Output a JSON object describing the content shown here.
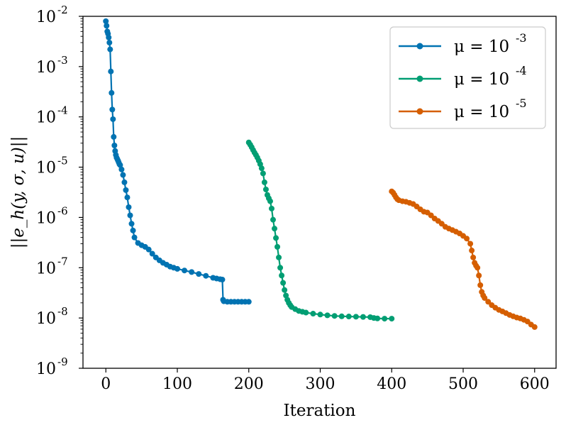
{
  "chart_data": {
    "type": "line",
    "title": "",
    "xlabel": "Iteration",
    "ylabel": "||e_h(y, σ, u)||",
    "yscale": "log",
    "xlim": [
      -32,
      630
    ],
    "ylim_exponents": [
      -9,
      -2
    ],
    "x_ticks": [
      0,
      100,
      200,
      300,
      400,
      500,
      600
    ],
    "x_tick_labels": [
      "0",
      "100",
      "200",
      "300",
      "400",
      "500",
      "600"
    ],
    "y_tick_exponents": [
      -9,
      -8,
      -7,
      -6,
      -5,
      -4,
      -3,
      -2
    ],
    "y_tick_labels": [
      "-9",
      "-8",
      "-7",
      "-6",
      "-5",
      "-4",
      "-3",
      "-2"
    ],
    "y_tick_base": "10",
    "legend_position": "upper right",
    "legend_symbol": "μ = 10",
    "series": [
      {
        "name": "μ = 10^-3",
        "exponent_label": "-3",
        "color": "#0173b2",
        "x": [
          0,
          1,
          2,
          3,
          4,
          5,
          6,
          7,
          8,
          9,
          10,
          11,
          12,
          13,
          14,
          15,
          16,
          17,
          18,
          19,
          20,
          22,
          24,
          26,
          28,
          30,
          32,
          34,
          36,
          38,
          40,
          45,
          50,
          55,
          60,
          65,
          70,
          75,
          80,
          85,
          90,
          95,
          100,
          110,
          120,
          130,
          140,
          150,
          155,
          160,
          163,
          164,
          165,
          170,
          175,
          180,
          185,
          190,
          195,
          200
        ],
        "y": [
          0.008,
          0.0065,
          0.005,
          0.0045,
          0.0038,
          0.003,
          0.0022,
          0.0008,
          0.0003,
          0.00014,
          9e-05,
          4e-05,
          2.7e-05,
          2.1e-05,
          1.75e-05,
          1.55e-05,
          1.45e-05,
          1.35e-05,
          1.25e-05,
          1.15e-05,
          1.1e-05,
          9e-06,
          7e-06,
          5e-06,
          3.5e-06,
          2.5e-06,
          1.6e-06,
          1.1e-06,
          7.5e-07,
          5.5e-07,
          4e-07,
          3.1e-07,
          2.8e-07,
          2.6e-07,
          2.3e-07,
          1.9e-07,
          1.6e-07,
          1.4e-07,
          1.25e-07,
          1.15e-07,
          1.05e-07,
          1e-07,
          9.5e-08,
          8.8e-08,
          8.2e-08,
          7.5e-08,
          6.9e-08,
          6.3e-08,
          6.1e-08,
          5.9e-08,
          5.8e-08,
          2.3e-08,
          2.15e-08,
          2.1e-08,
          2.1e-08,
          2.1e-08,
          2.1e-08,
          2.1e-08,
          2.1e-08,
          2.1e-08
        ]
      },
      {
        "name": "μ = 10^-4",
        "exponent_label": "-4",
        "color": "#029e73",
        "x": [
          200,
          202,
          204,
          206,
          208,
          210,
          212,
          214,
          216,
          218,
          220,
          222,
          224,
          226,
          228,
          230,
          232,
          234,
          236,
          238,
          240,
          242,
          244,
          246,
          248,
          250,
          252,
          254,
          256,
          258,
          260,
          265,
          270,
          275,
          280,
          290,
          300,
          310,
          320,
          330,
          340,
          350,
          360,
          370,
          375,
          380,
          390,
          400
        ],
        "y": [
          3.1e-05,
          2.8e-05,
          2.5e-05,
          2.2e-05,
          1.95e-05,
          1.75e-05,
          1.55e-05,
          1.35e-05,
          1.15e-05,
          9.5e-06,
          7.5e-06,
          5e-06,
          3.6e-06,
          2.8e-06,
          2.4e-06,
          2.1e-06,
          1.5e-06,
          9e-07,
          6e-07,
          3.9e-07,
          2.6e-07,
          1.6e-07,
          1e-07,
          7e-08,
          5e-08,
          3.6e-08,
          2.8e-08,
          2.3e-08,
          2e-08,
          1.8e-08,
          1.65e-08,
          1.5e-08,
          1.38e-08,
          1.33e-08,
          1.28e-08,
          1.22e-08,
          1.17e-08,
          1.13e-08,
          1.1e-08,
          1.08e-08,
          1.07e-08,
          1.06e-08,
          1.05e-08,
          1.04e-08,
          1e-08,
          9.8e-09,
          9.7e-09,
          9.7e-09
        ]
      },
      {
        "name": "μ = 10^-5",
        "exponent_label": "-5",
        "color": "#d55e00",
        "x": [
          400,
          402,
          404,
          406,
          408,
          410,
          415,
          420,
          425,
          430,
          435,
          440,
          445,
          450,
          455,
          460,
          465,
          470,
          475,
          480,
          485,
          490,
          495,
          500,
          505,
          510,
          512,
          514,
          516,
          518,
          520,
          522,
          524,
          526,
          528,
          530,
          535,
          540,
          545,
          550,
          555,
          560,
          565,
          570,
          575,
          580,
          585,
          590,
          595,
          600
        ],
        "y": [
          3.3e-06,
          3.1e-06,
          2.8e-06,
          2.5e-06,
          2.3e-06,
          2.2e-06,
          2.1e-06,
          2.05e-06,
          1.95e-06,
          1.85e-06,
          1.65e-06,
          1.45e-06,
          1.3e-06,
          1.25e-06,
          1.1e-06,
          9.5e-07,
          8.5e-07,
          7.5e-07,
          6.5e-07,
          6e-07,
          5.6e-07,
          5.2e-07,
          4.8e-07,
          4.3e-07,
          3.8e-07,
          3e-07,
          2.2e-07,
          1.6e-07,
          1.25e-07,
          1.1e-07,
          1e-07,
          7e-08,
          4.5e-08,
          3.3e-08,
          2.8e-08,
          2.5e-08,
          2.1e-08,
          1.8e-08,
          1.6e-08,
          1.45e-08,
          1.35e-08,
          1.25e-08,
          1.15e-08,
          1.08e-08,
          1.02e-08,
          9.8e-09,
          9.2e-09,
          8.5e-09,
          7.4e-09,
          6.6e-09
        ]
      }
    ]
  }
}
